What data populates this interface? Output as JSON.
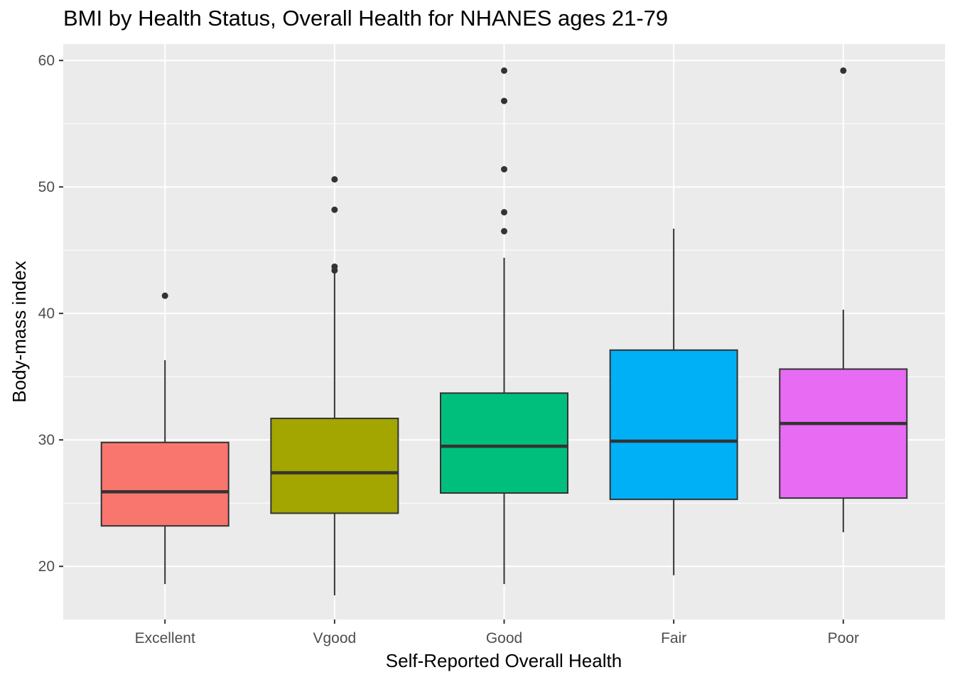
{
  "chart_data": {
    "type": "boxplot",
    "title": "BMI by Health Status, Overall Health for NHANES ages 21-79",
    "xlabel": "Self-Reported Overall Health",
    "ylabel": "Body-mass index",
    "ylim": [
      15.8,
      61.3
    ],
    "yticks": [
      20,
      30,
      40,
      50,
      60
    ],
    "grid": true,
    "legend": "none",
    "categories": [
      "Excellent",
      "Vgood",
      "Good",
      "Fair",
      "Poor"
    ],
    "series": [
      {
        "category": "Excellent",
        "color": "#F8766D",
        "lower_whisker": 18.6,
        "q1": 23.2,
        "median": 25.9,
        "q3": 29.8,
        "upper_whisker": 36.3,
        "outliers": [
          41.4
        ]
      },
      {
        "category": "Vgood",
        "color": "#A3A500",
        "lower_whisker": 17.7,
        "q1": 24.2,
        "median": 27.4,
        "q3": 31.7,
        "upper_whisker": 43.2,
        "outliers": [
          43.4,
          43.7,
          48.2,
          50.6
        ]
      },
      {
        "category": "Good",
        "color": "#00BF7D",
        "lower_whisker": 18.6,
        "q1": 25.8,
        "median": 29.5,
        "q3": 33.7,
        "upper_whisker": 44.4,
        "outliers": [
          46.5,
          48.0,
          51.4,
          56.8,
          59.2
        ]
      },
      {
        "category": "Fair",
        "color": "#00B0F6",
        "lower_whisker": 19.3,
        "q1": 25.3,
        "median": 29.9,
        "q3": 37.1,
        "upper_whisker": 46.7,
        "outliers": []
      },
      {
        "category": "Poor",
        "color": "#E76BF3",
        "lower_whisker": 22.7,
        "q1": 25.4,
        "median": 31.3,
        "q3": 35.6,
        "upper_whisker": 40.3,
        "outliers": [
          59.2
        ]
      }
    ]
  }
}
